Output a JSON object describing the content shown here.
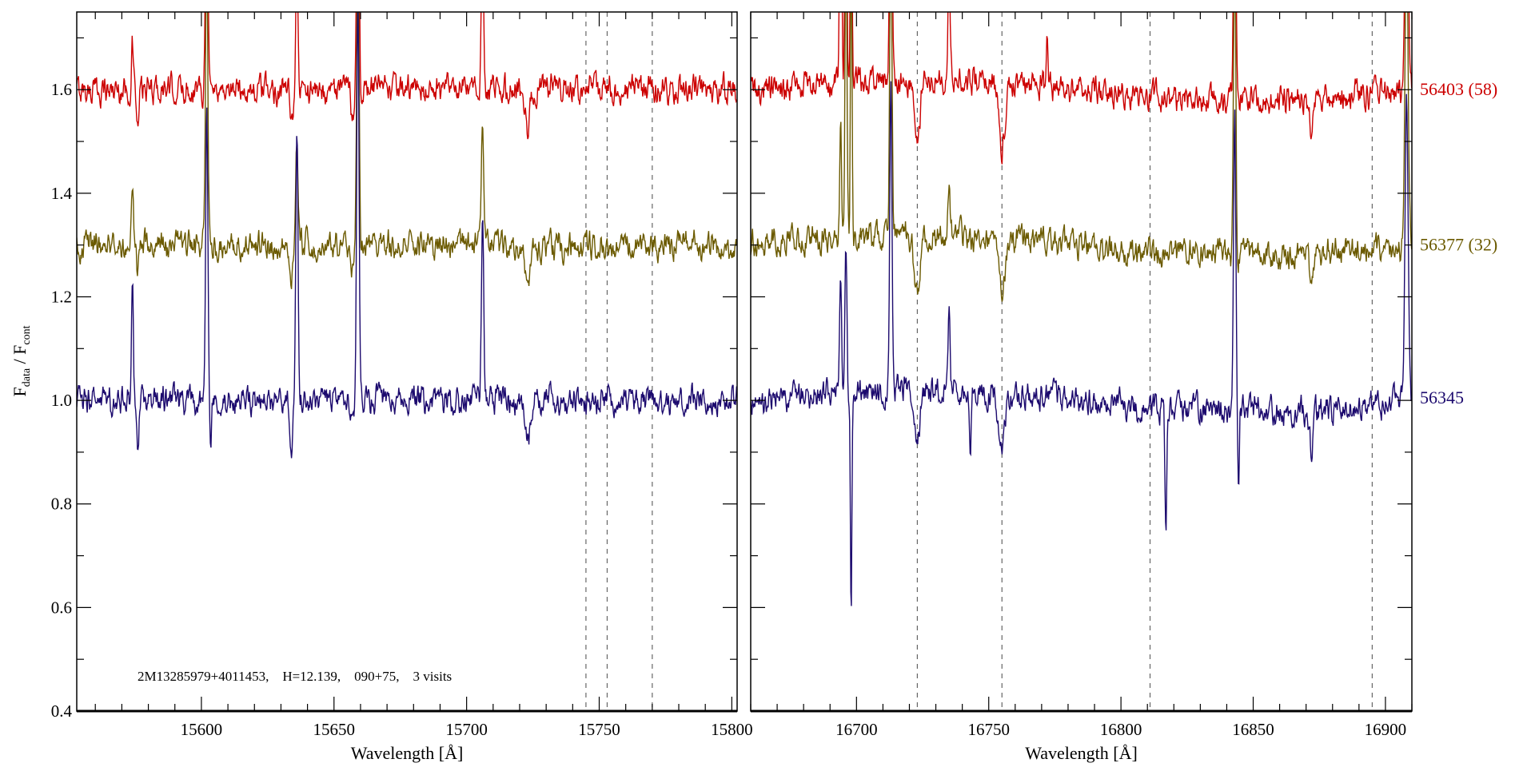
{
  "chart_data": {
    "type": "line",
    "ylabel_main": "F",
    "ylabel_sub1": "data",
    "ylabel_sep": " / F",
    "ylabel_sub2": "cont",
    "ylim": [
      0.4,
      1.75
    ],
    "yticks": [
      0.4,
      0.6,
      0.8,
      1.0,
      1.2,
      1.4,
      1.6
    ],
    "ytick_labels": [
      "0.4",
      "0.6",
      "0.8",
      "1.0",
      "1.2",
      "1.4",
      "1.6"
    ],
    "annotation": "2M13285979+4011453,    H=12.139,    090+75,    3 visits",
    "series": [
      {
        "name": "56403 (58)",
        "color": "#cc0000",
        "offset": 1.6
      },
      {
        "name": "56377 (32)",
        "color": "#6b5a00",
        "offset": 1.3
      },
      {
        "name": "56345",
        "color": "#1c0a6e",
        "offset": 1.0
      }
    ],
    "panels": [
      {
        "xlabel": "Wavelength [Å]",
        "xlim": [
          15553,
          15802
        ],
        "xticks": [
          15600,
          15650,
          15700,
          15750,
          15800
        ],
        "xtick_labels": [
          "15600",
          "15650",
          "15700",
          "15750",
          "15800"
        ],
        "dashed_lines": [
          15745,
          15753,
          15770
        ],
        "features": [
          {
            "x": 15602,
            "a": [
              0.6,
              0.6,
              0.55
            ],
            "w": 0.6
          },
          {
            "x": 15636,
            "a": [
              0.25,
              0.2,
              0.55
            ],
            "w": 0.6
          },
          {
            "x": 15659,
            "a": [
              0.6,
              0.6,
              0.8
            ],
            "w": 0.6
          },
          {
            "x": 15706,
            "a": [
              0.3,
              0.25,
              0.35
            ],
            "w": 0.6
          },
          {
            "x": 15574,
            "a": [
              0.08,
              0.09,
              0.22
            ],
            "w": 0.5
          },
          {
            "x": 15576,
            "a": [
              -0.08,
              -0.07,
              -0.1
            ],
            "w": 0.6
          },
          {
            "x": 15603.5,
            "a": [
              0,
              0,
              -0.12
            ],
            "w": 0.5
          },
          {
            "x": 15634,
            "a": [
              -0.08,
              -0.07,
              -0.08
            ],
            "w": 0.8
          },
          {
            "x": 15657,
            "a": [
              -0.05,
              -0.05,
              -0.06
            ],
            "w": 0.8
          },
          {
            "x": 15723,
            "a": [
              -0.08,
              -0.08,
              -0.08
            ],
            "w": 1.2
          }
        ]
      },
      {
        "xlabel": "Wavelength [Å]",
        "xlim": [
          16660,
          16910
        ],
        "xticks": [
          16700,
          16750,
          16800,
          16850,
          16900
        ],
        "xtick_labels": [
          "16700",
          "16750",
          "16800",
          "16850",
          "16900"
        ],
        "dashed_lines": [
          16723,
          16755,
          16811,
          16895
        ],
        "features": [
          {
            "x": 16694,
            "a": [
              0.6,
              0.2,
              0.25
            ],
            "w": 0.5
          },
          {
            "x": 16696,
            "a": [
              0.6,
              0.6,
              0.3
            ],
            "w": 0.5
          },
          {
            "x": 16698,
            "a": [
              0.6,
              0.6,
              -0.42
            ],
            "w": 0.4
          },
          {
            "x": 16713,
            "a": [
              0.6,
              0.6,
              0.6
            ],
            "w": 0.6
          },
          {
            "x": 16735,
            "a": [
              0.2,
              0.08,
              0.15
            ],
            "w": 0.6
          },
          {
            "x": 16843,
            "a": [
              0.6,
              0.6,
              0.6
            ],
            "w": 0.6
          },
          {
            "x": 16844.5,
            "a": [
              0,
              0,
              -0.17
            ],
            "w": 0.4
          },
          {
            "x": 16908,
            "a": [
              0.6,
              0.6,
              0.6
            ],
            "w": 0.8
          },
          {
            "x": 16723,
            "a": [
              -0.1,
              -0.12,
              -0.08
            ],
            "w": 1.5
          },
          {
            "x": 16755,
            "a": [
              -0.12,
              -0.1,
              -0.09
            ],
            "w": 1.8
          },
          {
            "x": 16743,
            "a": [
              0,
              0,
              -0.12
            ],
            "w": 0.5
          },
          {
            "x": 16817,
            "a": [
              0,
              0,
              -0.22
            ],
            "w": 0.5
          },
          {
            "x": 16872,
            "a": [
              -0.06,
              -0.07,
              -0.08
            ],
            "w": 0.8
          },
          {
            "x": 16772,
            "a": [
              0.1,
              0.0,
              0.0
            ],
            "w": 0.4
          }
        ]
      }
    ]
  }
}
